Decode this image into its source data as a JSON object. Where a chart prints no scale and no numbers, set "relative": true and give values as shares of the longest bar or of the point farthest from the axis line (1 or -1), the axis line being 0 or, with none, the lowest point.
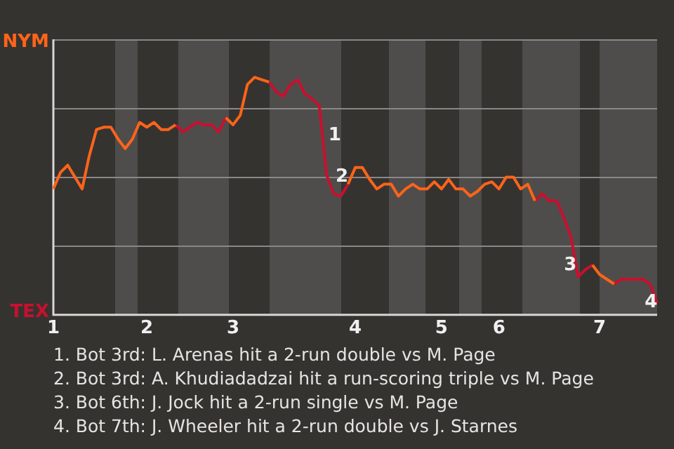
{
  "chart_data": {
    "type": "line",
    "categories": [
      "1",
      null,
      null,
      null,
      null,
      null,
      null,
      null,
      null,
      null,
      null,
      null,
      null,
      "2",
      null,
      null,
      null,
      null,
      null,
      null,
      null,
      null,
      null,
      null,
      null,
      "3",
      null,
      null,
      null,
      null,
      null,
      null,
      null,
      null,
      null,
      null,
      null,
      null,
      null,
      null,
      null,
      null,
      "4",
      null,
      null,
      null,
      null,
      null,
      null,
      null,
      null,
      null,
      null,
      null,
      "5",
      null,
      null,
      null,
      null,
      null,
      null,
      null,
      "6",
      null,
      null,
      null,
      null,
      null,
      null,
      null,
      null,
      null,
      null,
      null,
      null,
      null,
      "7",
      null,
      null,
      null,
      null,
      null,
      null,
      null,
      null
    ],
    "relative": true,
    "series": [
      {
        "name": "NYM",
        "color": "#ff6419",
        "values": [
          0.53,
          0.6,
          0.63,
          0.58,
          0.53,
          0.67,
          0.78,
          0.79,
          0.79,
          0.74,
          0.7,
          0.74,
          0.81,
          0.79,
          0.81,
          0.78,
          0.78,
          0.8,
          null,
          null,
          null,
          null,
          null,
          null,
          0.83,
          0.8,
          0.84,
          0.97,
          1,
          0.99,
          0.98,
          null,
          null,
          null,
          null,
          null,
          null,
          null,
          null,
          null,
          null,
          0.55,
          0.62,
          0.62,
          0.57,
          0.53,
          0.55,
          0.55,
          0.5,
          0.53,
          0.55,
          0.53,
          0.53,
          0.56,
          0.53,
          0.57,
          0.53,
          0.53,
          0.5,
          0.52,
          0.55,
          0.56,
          0.53,
          0.58,
          0.58,
          0.53,
          0.55,
          0.48,
          null,
          null,
          null,
          null,
          null,
          null,
          null,
          0.21,
          0.17,
          0.15,
          0.13,
          null,
          null,
          null,
          null,
          null,
          null
        ]
      },
      {
        "name": "TEX",
        "color": "#c8102e",
        "values": [
          null,
          null,
          null,
          null,
          null,
          null,
          null,
          null,
          null,
          null,
          null,
          null,
          null,
          null,
          null,
          null,
          null,
          0.8,
          0.77,
          0.79,
          0.81,
          0.8,
          0.8,
          0.77,
          0.83,
          null,
          null,
          null,
          null,
          null,
          0.98,
          0.94,
          0.92,
          0.97,
          0.99,
          0.93,
          0.91,
          0.88,
          0.59,
          0.51,
          0.5,
          0.55,
          null,
          null,
          null,
          null,
          null,
          null,
          null,
          null,
          null,
          null,
          null,
          null,
          null,
          null,
          null,
          null,
          null,
          null,
          null,
          null,
          null,
          null,
          null,
          null,
          null,
          0.48,
          0.51,
          0.48,
          0.48,
          0.41,
          0.33,
          0.16,
          0.19,
          0.21,
          null,
          null,
          0.13,
          0.15,
          0.15,
          0.15,
          0.15,
          0.13,
          0.05
        ]
      }
    ],
    "grid": "y",
    "legend": "left",
    "annotations": [
      "1",
      "2",
      "3",
      "4",
      "1. Bot 3rd: L. Arenas hit a 2-run double vs M. Page",
      "2. Bot 3rd: A. Khudiadadzai hit a run-scoring triple vs M. Page",
      "3. Bot 6th: J. Jock hit a 2-run single vs M. Page",
      "4. Bot 7th: J. Wheeler hit a 2-run double vs J. Starnes"
    ],
    "marker": "none"
  }
}
